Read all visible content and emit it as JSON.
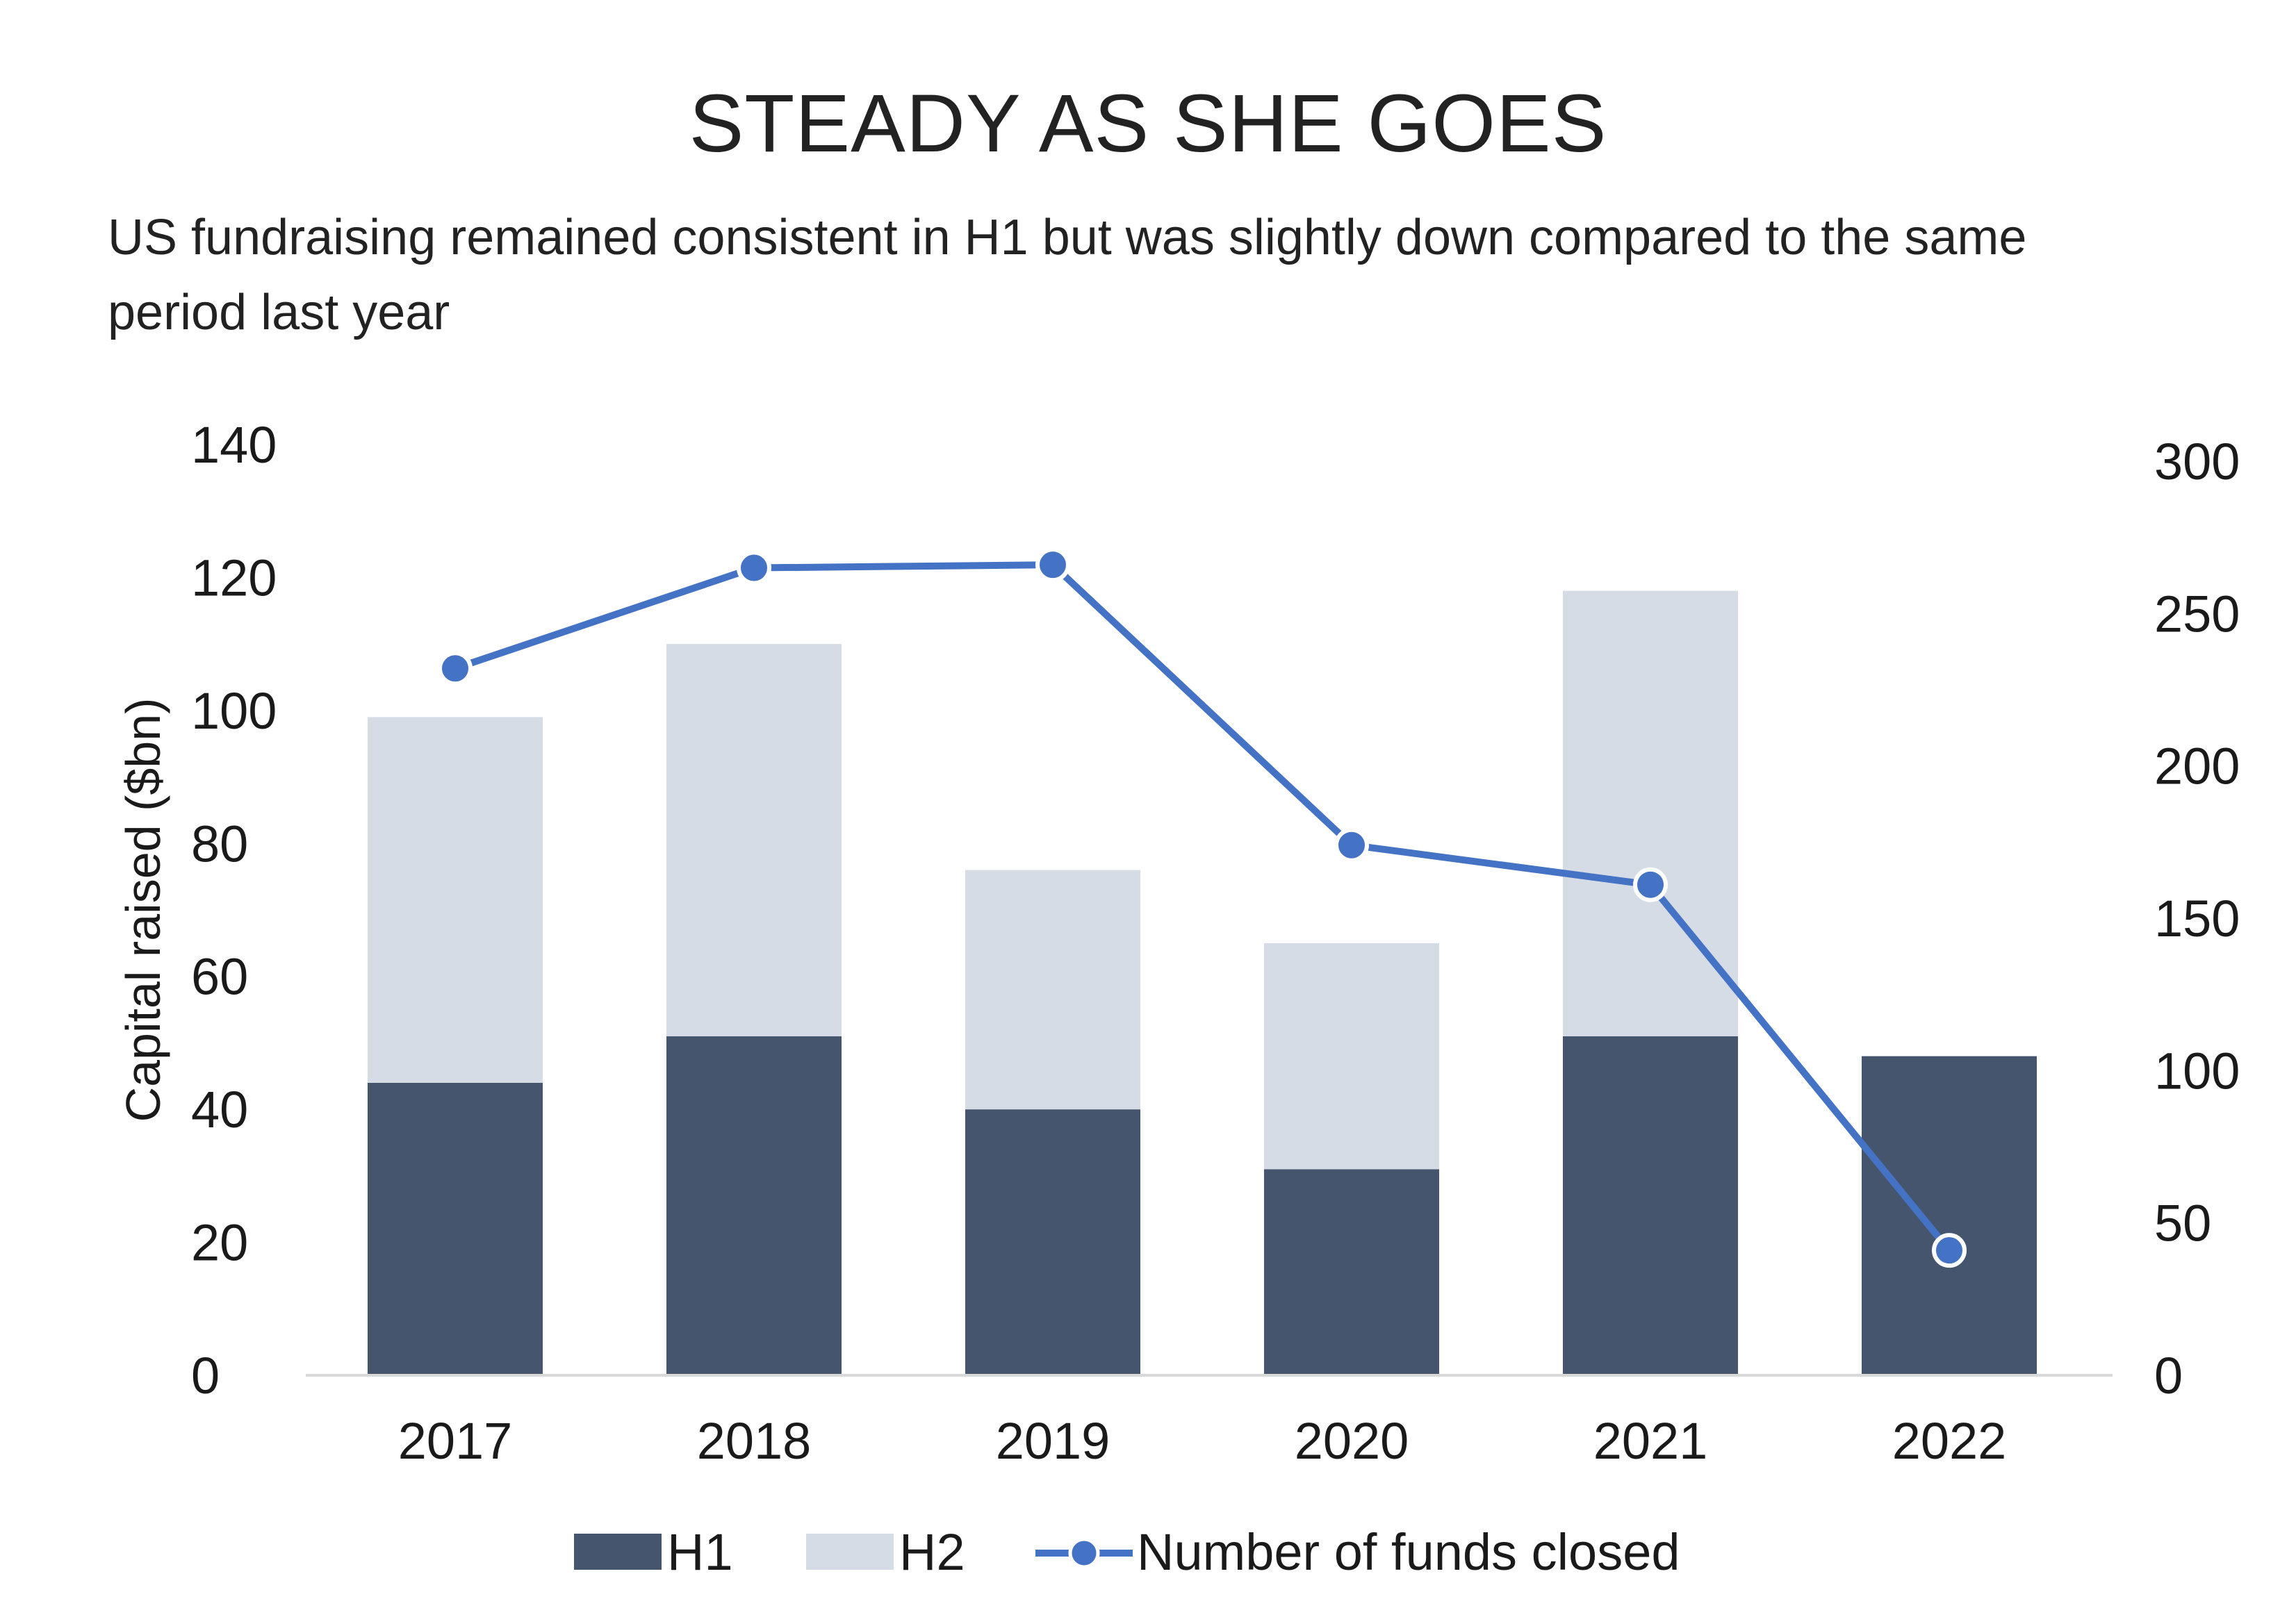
{
  "chart_data": {
    "type": "bar",
    "stacked": true,
    "title": "STEADY AS SHE GOES",
    "subtitle": "US fundraising remained consistent in H1 but was slightly down compared to the same period last year",
    "categories": [
      "2017",
      "2018",
      "2019",
      "2020",
      "2021",
      "2022"
    ],
    "ylabel": "Capital raised ($bn)",
    "ylim": [
      0,
      140
    ],
    "yticks": [
      "0",
      "20",
      "40",
      "60",
      "80",
      "100",
      "120",
      "140"
    ],
    "y2lim": [
      0,
      300
    ],
    "y2ticks": [
      "0",
      "50",
      "100",
      "150",
      "200",
      "250",
      "300"
    ],
    "series": [
      {
        "name": "H1",
        "type": "bar",
        "axis": "left",
        "color": "#45556d",
        "values": [
          44,
          51,
          40,
          31,
          51,
          48
        ]
      },
      {
        "name": "H2",
        "type": "bar",
        "axis": "left",
        "color": "#d6dce6",
        "values": [
          55,
          59,
          36,
          34,
          67,
          0
        ]
      },
      {
        "name": "Number of funds closed",
        "type": "line",
        "axis": "right",
        "color": "#4472c4",
        "values": [
          232,
          265,
          266,
          174,
          161,
          41
        ]
      }
    ],
    "legend": "bottom",
    "grid": false
  }
}
